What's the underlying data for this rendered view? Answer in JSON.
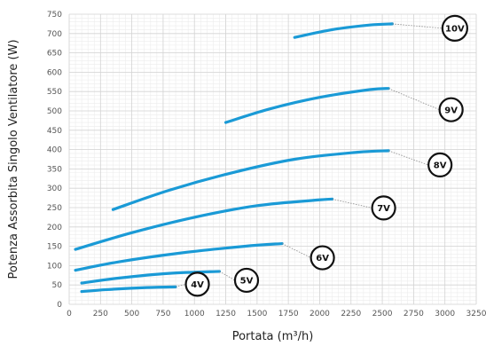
{
  "chart_data": {
    "type": "line",
    "xlabel": "Portata (m³/h)",
    "ylabel": "Potenza Assorbita Singolo Ventilatore (W)",
    "xlim": [
      0,
      3250
    ],
    "ylim": [
      0,
      750
    ],
    "x_ticks": [
      0,
      250,
      500,
      750,
      1000,
      1250,
      1500,
      1750,
      2000,
      2250,
      2500,
      2750,
      3000,
      3250
    ],
    "y_ticks": [
      0,
      50,
      100,
      150,
      200,
      250,
      300,
      350,
      400,
      450,
      500,
      550,
      600,
      650,
      700,
      750
    ],
    "grid": true,
    "line_color": "#1a9ad6",
    "series": [
      {
        "name": "4V",
        "x": [
          100,
          300,
          600,
          850
        ],
        "y": [
          33,
          38,
          43,
          45
        ]
      },
      {
        "name": "5V",
        "x": [
          100,
          400,
          800,
          1200
        ],
        "y": [
          55,
          68,
          80,
          85
        ]
      },
      {
        "name": "6V",
        "x": [
          50,
          400,
          900,
          1400,
          1700
        ],
        "y": [
          88,
          110,
          133,
          150,
          157
        ]
      },
      {
        "name": "7V",
        "x": [
          50,
          500,
          1000,
          1500,
          2000,
          2100
        ],
        "y": [
          142,
          185,
          225,
          255,
          270,
          272
        ]
      },
      {
        "name": "8V",
        "x": [
          350,
          800,
          1300,
          1800,
          2300,
          2550
        ],
        "y": [
          245,
          295,
          340,
          375,
          393,
          397
        ]
      },
      {
        "name": "9V",
        "x": [
          1250,
          1600,
          2000,
          2400,
          2550
        ],
        "y": [
          470,
          505,
          535,
          555,
          558
        ]
      },
      {
        "name": "10V",
        "x": [
          1800,
          2100,
          2400,
          2580
        ],
        "y": [
          690,
          710,
          722,
          725
        ]
      }
    ]
  }
}
